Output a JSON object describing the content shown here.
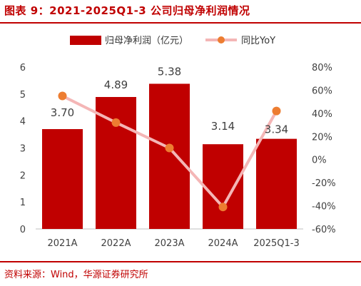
{
  "title": "图表 9：2021-2025Q1-3 公司归母净利润情况",
  "source": "资料来源：Wind，华源证券研究所",
  "colors": {
    "bar": "#c00000",
    "line": "#f4b6b6",
    "marker": "#ed7d31",
    "title": "#c00000"
  },
  "chart_data": {
    "type": "bar",
    "categories": [
      "2021A",
      "2022A",
      "2023A",
      "2024A",
      "2025Q1-3"
    ],
    "series": [
      {
        "name": "归母净利润（亿元）",
        "type": "bar",
        "axis": "left",
        "values": [
          3.7,
          4.89,
          5.38,
          3.14,
          3.34
        ],
        "labels": [
          "3.70",
          "4.89",
          "5.38",
          "3.14",
          "3.34"
        ]
      },
      {
        "name": "同比YoY",
        "type": "line",
        "axis": "right",
        "values": [
          55,
          32,
          10,
          -41,
          42
        ]
      }
    ],
    "y_left": {
      "min": 0,
      "max": 6,
      "ticks": [
        "0",
        "1",
        "2",
        "3",
        "4",
        "5",
        "6"
      ]
    },
    "y_right": {
      "min": -60,
      "max": 80,
      "ticks": [
        "-60%",
        "-40%",
        "-20%",
        "0%",
        "20%",
        "40%",
        "60%",
        "80%"
      ]
    },
    "legend": "top",
    "grid": false
  }
}
